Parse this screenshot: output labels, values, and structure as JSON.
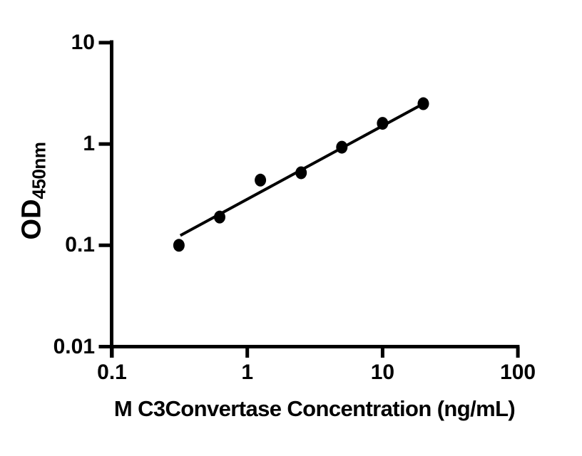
{
  "figure": {
    "background_color": "#ffffff",
    "ink_color": "#000000"
  },
  "chart_data": {
    "type": "scatter",
    "title": "",
    "xlabel": "M C3Convertase Concentration (ng/mL)",
    "ylabel_main": "OD",
    "ylabel_sub": "450nm",
    "x_scale": "log10",
    "y_scale": "log10",
    "xlim": [
      0.1,
      100
    ],
    "ylim": [
      0.01,
      10
    ],
    "x_ticks": [
      0.1,
      1,
      10,
      100
    ],
    "x_tick_labels": [
      "0.1",
      "1",
      "10",
      "100"
    ],
    "y_ticks": [
      0.01,
      0.1,
      1,
      10
    ],
    "y_tick_labels": [
      "0.01",
      "0.1",
      "1",
      "10"
    ],
    "grid": false,
    "legend": null,
    "marker": {
      "shape": "filled-ellipse",
      "fill": "#000000"
    },
    "points": [
      {
        "x": 0.3125,
        "y": 0.1
      },
      {
        "x": 0.625,
        "y": 0.19
      },
      {
        "x": 1.25,
        "y": 0.44
      },
      {
        "x": 2.5,
        "y": 0.52
      },
      {
        "x": 5,
        "y": 0.93
      },
      {
        "x": 10,
        "y": 1.6
      },
      {
        "x": 20,
        "y": 2.5
      }
    ],
    "trendline": {
      "x1": 0.32,
      "y1": 0.125,
      "x2": 20.3,
      "y2": 2.52
    }
  }
}
